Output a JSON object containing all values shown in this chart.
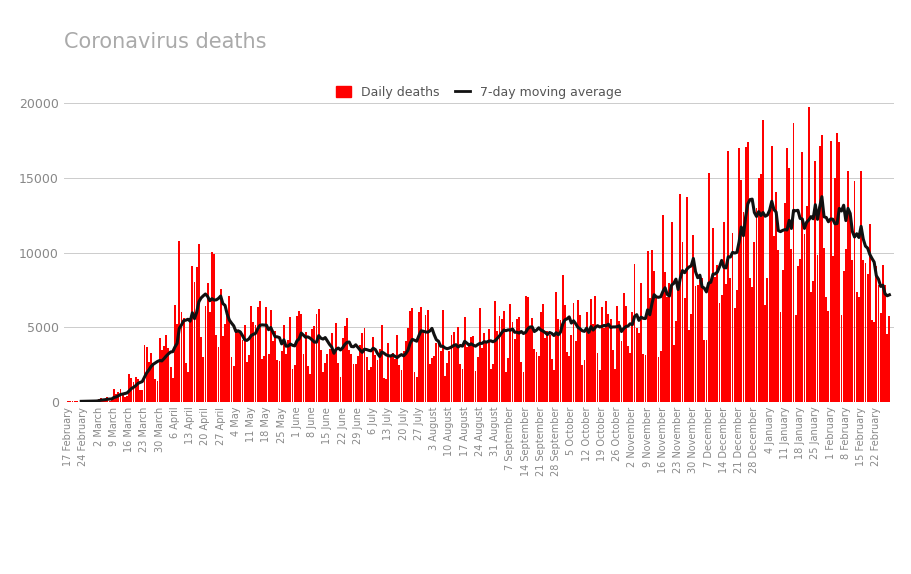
{
  "title": "Coronavirus deaths",
  "legend_bar": "Daily deaths",
  "legend_line": "7-day moving average",
  "bar_color": "#ff0000",
  "line_color": "#111111",
  "background_color": "#ffffff",
  "ylim": [
    0,
    20000
  ],
  "yticks": [
    0,
    5000,
    10000,
    15000,
    20000
  ],
  "title_fontsize": 15,
  "title_color": "#aaaaaa",
  "tick_label_color": "#888888",
  "tick_labels": [
    "17 February",
    "24 February",
    "2 March",
    "9 March",
    "16 March",
    "23 March",
    "30 March",
    "6 April",
    "13 April",
    "20 April",
    "27 April",
    "4 May",
    "11 May",
    "18 May",
    "25 May",
    "1 June",
    "8 June",
    "15 June",
    "22 June",
    "29 June",
    "6 July",
    "13 July",
    "20 July",
    "27 July",
    "3 August",
    "10 August",
    "17 August",
    "24 August",
    "31 August",
    "7 September",
    "14 September",
    "21 September",
    "28 September",
    "5 October",
    "12 October",
    "19 October",
    "26 October",
    "2 November",
    "9 November",
    "16 November",
    "23 November",
    "30 November",
    "7 December",
    "14 December",
    "21 December",
    "28 December",
    "4 January",
    "11 January",
    "18 January",
    "25 January",
    "1 February",
    "8 February",
    "15 February",
    "22 February"
  ],
  "weekly_avg": [
    30,
    60,
    200,
    600,
    1500,
    2800,
    3500,
    5000,
    7200,
    6800,
    5500,
    5000,
    4800,
    4400,
    4200,
    4500,
    4300,
    4000,
    3800,
    3600,
    3800,
    4000,
    4200,
    4400,
    4300,
    4500,
    4400,
    4600,
    4700,
    4500,
    4800,
    5000,
    5200,
    5000,
    5000,
    5200,
    5600,
    6200,
    7200,
    8500,
    9500,
    10000,
    10500,
    11200,
    12500,
    13800,
    13000,
    14000,
    13500,
    12500,
    13500,
    11500,
    10500,
    8500
  ]
}
